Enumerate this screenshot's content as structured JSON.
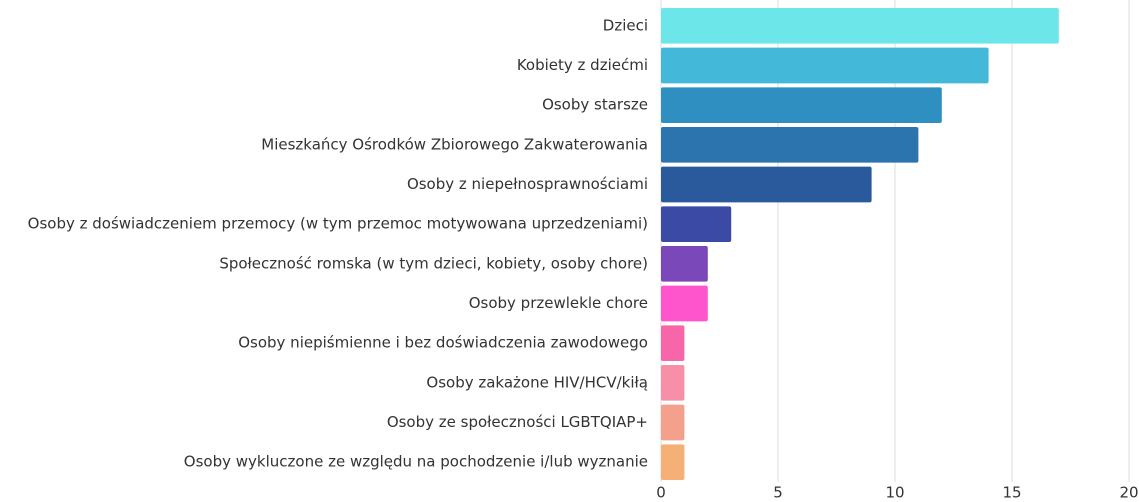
{
  "chart_data": {
    "type": "barh",
    "categories": [
      "Dzieci",
      "Kobiety z dziećmi",
      "Osoby starsze",
      "Mieszkańcy Ośrodków Zbiorowego Zakwaterowania",
      "Osoby z niepełnosprawnościami",
      "Osoby z doświadczeniem przemocy (w tym przemoc motywowana uprzedzeniami)",
      "Społeczność romska (w tym dzieci, kobiety, osoby chore)",
      "Osoby przewlekle chore",
      "Osoby niepiśmienne i bez doświadczenia zawodowego",
      "Osoby zakażone HIV/HCV/kiłą",
      "Osoby ze społeczności LGBTQIAP+",
      "Osoby wykluczone ze względu na pochodzenie i/lub wyznanie"
    ],
    "values": [
      17,
      14,
      12,
      11,
      9,
      3,
      2,
      2,
      1,
      1,
      1,
      1
    ],
    "colors": [
      "#6de6ea",
      "#44b8d8",
      "#2e8fc0",
      "#2c74ad",
      "#2a5a9c",
      "#3b4aa4",
      "#7a48b8",
      "#ff55cc",
      "#f766a8",
      "#f78fa8",
      "#f3a08c",
      "#f5b077"
    ],
    "xlim": [
      0,
      20
    ],
    "xticks": [
      0,
      5,
      10,
      15,
      20
    ],
    "grid": true
  }
}
